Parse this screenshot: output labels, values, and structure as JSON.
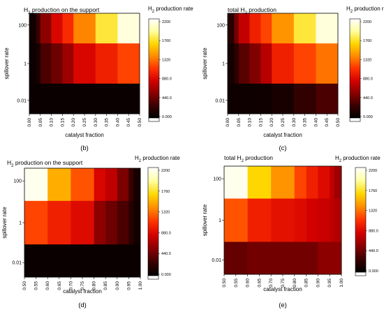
{
  "colorbar": {
    "title": "H₂ production rate",
    "ticks": [
      "2200",
      "1760",
      "1320",
      "880.0",
      "440.0",
      "0.000"
    ],
    "range": [
      0,
      2200
    ],
    "colors": [
      "#000000",
      "#3a0000",
      "#8a0000",
      "#d40000",
      "#ff3300",
      "#ff8c00",
      "#ffd700",
      "#ffffa0",
      "#ffffff"
    ]
  },
  "chart_data": [
    {
      "type": "heatmap",
      "title": "H₂ production on the support",
      "xlabel": "catalyst fraction",
      "ylabel": "spillover rate",
      "x_edges": [
        "0.00",
        "0.05",
        "0.10",
        "0.15",
        "0.20",
        "0.25",
        "0.30",
        "0.35",
        "0.40",
        "0.45",
        "0.50"
      ],
      "y_ticks": [
        "100",
        "1",
        "0.01"
      ],
      "rows": [
        {
          "y_band": "high",
          "x_bounds": [
            0.0,
            0.03,
            0.05,
            0.1,
            0.15,
            0.2,
            0.3,
            0.4,
            0.5
          ],
          "values": [
            80,
            260,
            560,
            860,
            1050,
            1350,
            1750,
            2100
          ]
        },
        {
          "y_band": "mid",
          "x_bounds": [
            0.0,
            0.03,
            0.05,
            0.1,
            0.15,
            0.2,
            0.3,
            0.4,
            0.5
          ],
          "values": [
            60,
            120,
            330,
            450,
            620,
            860,
            1000,
            1150
          ]
        },
        {
          "y_band": "low",
          "x_bounds": [
            0.0,
            0.5
          ],
          "values": [
            50
          ]
        }
      ],
      "label": "(b)"
    },
    {
      "type": "heatmap",
      "title": "total H₂ production",
      "xlabel": "catalyst fraction",
      "ylabel": "spillover rate",
      "x_edges": [
        "0.00",
        "0.05",
        "0.10",
        "0.15",
        "0.20",
        "0.25",
        "0.30",
        "0.35",
        "0.40",
        "0.45",
        "0.50"
      ],
      "y_ticks": [
        "100",
        "1",
        "0.01"
      ],
      "rows": [
        {
          "y_band": "high",
          "x_bounds": [
            0.0,
            0.03,
            0.05,
            0.1,
            0.15,
            0.2,
            0.3,
            0.4,
            0.5
          ],
          "values": [
            180,
            480,
            760,
            1000,
            1150,
            1400,
            1750,
            2100
          ]
        },
        {
          "y_band": "mid",
          "x_bounds": [
            0.0,
            0.03,
            0.05,
            0.1,
            0.15,
            0.2,
            0.3,
            0.4,
            0.5
          ],
          "values": [
            100,
            200,
            380,
            520,
            720,
            1000,
            1150,
            1300
          ]
        },
        {
          "y_band": "low",
          "x_bounds": [
            0.0,
            0.2,
            0.3,
            0.4,
            0.5
          ],
          "values": [
            70,
            120,
            230,
            330
          ]
        }
      ],
      "label": "(c)"
    },
    {
      "type": "heatmap",
      "title": "H₂ production on the support",
      "xlabel": "catalyst fraction",
      "ylabel": "spillover rate",
      "x_edges": [
        "0.50",
        "0.55",
        "0.60",
        "0.65",
        "0.70",
        "0.75",
        "0.80",
        "0.85",
        "0.90",
        "0.95",
        "1.00"
      ],
      "y_ticks": [
        "100",
        "1",
        "0.01"
      ],
      "rows": [
        {
          "y_band": "high",
          "x_bounds": [
            0.5,
            0.6,
            0.7,
            0.8,
            0.85,
            0.9,
            0.95,
            0.97,
            1.0
          ],
          "values": [
            2150,
            1500,
            1200,
            850,
            750,
            500,
            260,
            120
          ]
        },
        {
          "y_band": "mid",
          "x_bounds": [
            0.5,
            0.6,
            0.7,
            0.8,
            0.85,
            0.9,
            0.95,
            0.97,
            1.0
          ],
          "values": [
            1150,
            1000,
            880,
            560,
            450,
            330,
            180,
            90
          ]
        },
        {
          "y_band": "low",
          "x_bounds": [
            0.5,
            1.0
          ],
          "values": [
            50
          ]
        }
      ],
      "label": "(d)"
    },
    {
      "type": "heatmap",
      "title": "total H₂ production",
      "xlabel": "catalyst fraction",
      "ylabel": "spillover rate",
      "x_edges": [
        "0.50",
        "0.55",
        "0.60",
        "0.65",
        "0.70",
        "0.75",
        "0.80",
        "0.85",
        "0.90",
        "0.95",
        "1.00"
      ],
      "y_ticks": [
        "100",
        "1",
        "0.01"
      ],
      "rows": [
        {
          "y_band": "high",
          "x_bounds": [
            0.5,
            0.6,
            0.7,
            0.8,
            0.85,
            0.9,
            0.95,
            0.97,
            1.0
          ],
          "values": [
            2150,
            1650,
            1400,
            1150,
            1000,
            880,
            750,
            620
          ]
        },
        {
          "y_band": "mid",
          "x_bounds": [
            0.5,
            0.6,
            0.7,
            0.8,
            0.85,
            0.9,
            0.95,
            0.97,
            1.0
          ],
          "values": [
            1200,
            1000,
            920,
            880,
            820,
            780,
            740,
            700
          ]
        },
        {
          "y_band": "low",
          "x_bounds": [
            0.5,
            0.6,
            0.9,
            1.0
          ],
          "values": [
            420,
            470,
            560
          ]
        }
      ],
      "label": "(e)"
    }
  ]
}
